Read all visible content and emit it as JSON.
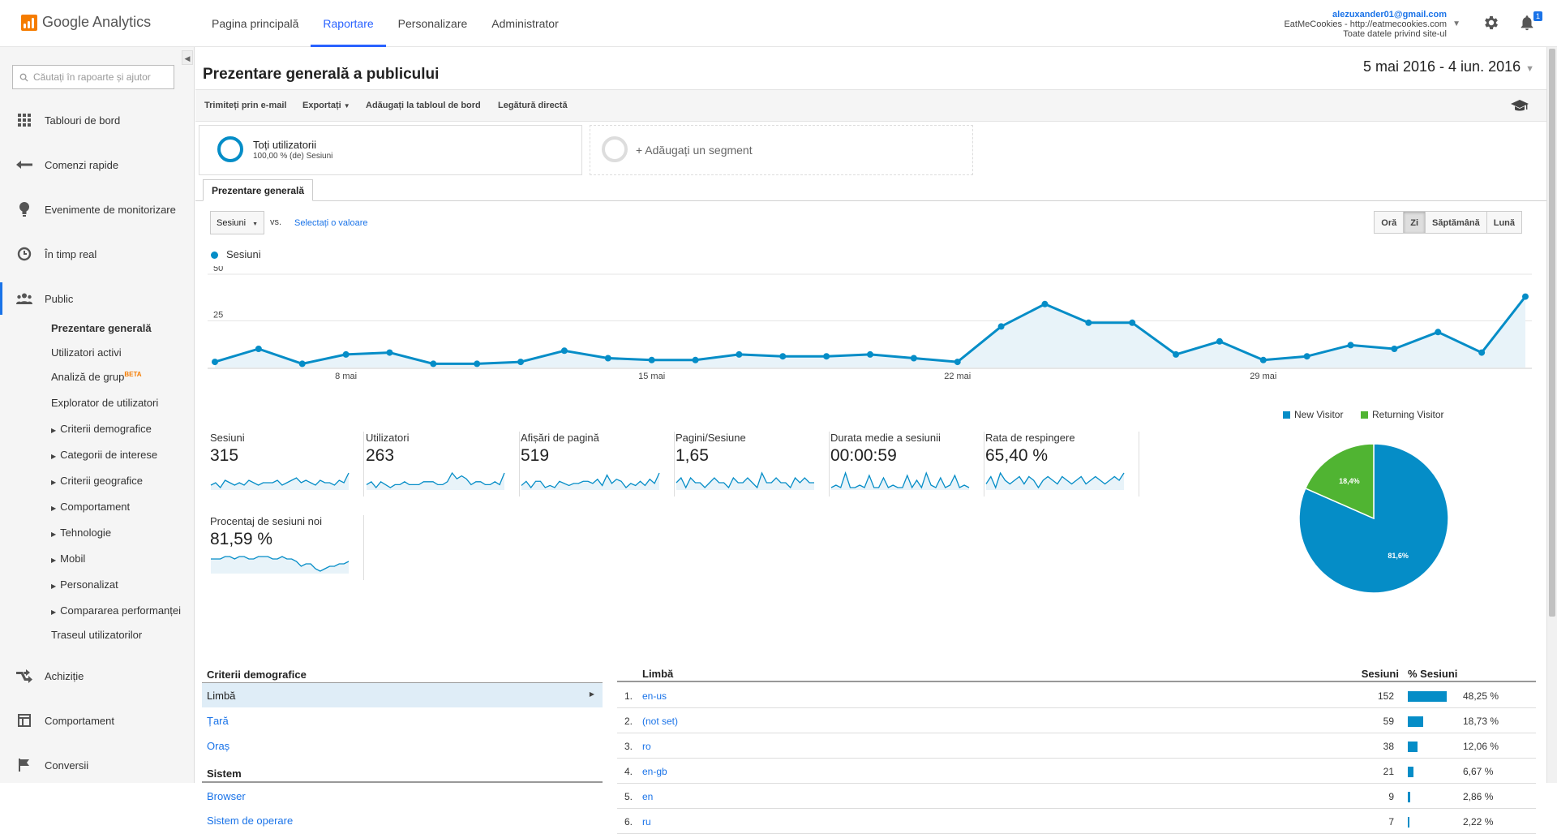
{
  "app": {
    "logo_text": "Google Analytics",
    "nav": [
      {
        "label": "Pagina principală",
        "active": false
      },
      {
        "label": "Raportare",
        "active": true
      },
      {
        "label": "Personalizare",
        "active": false
      },
      {
        "label": "Administrator",
        "active": false
      }
    ],
    "account": {
      "email": "alezuxander01@gmail.com",
      "property": "EatMeCookies - http://eatmecookies.com",
      "view": "Toate datele privind site-ul"
    },
    "notification_count": "1"
  },
  "sidebar": {
    "search_placeholder": "Căutați în rapoarte și ajutor",
    "items": [
      {
        "label": "Tablouri de bord",
        "icon": "dashboard-icon"
      },
      {
        "label": "Comenzi rapide",
        "icon": "shortcut-icon"
      },
      {
        "label": "Evenimente de monitorizare",
        "icon": "lightbulb-icon"
      },
      {
        "label": "În timp real",
        "icon": "clock-icon"
      },
      {
        "label": "Public",
        "icon": "people-icon"
      },
      {
        "label": "Achiziție",
        "icon": "acquisition-icon"
      },
      {
        "label": "Comportament",
        "icon": "behavior-icon"
      },
      {
        "label": "Conversii",
        "icon": "flag-icon"
      }
    ],
    "subitems": [
      "Prezentare generală",
      "Utilizatori activi",
      "Analiză de grup",
      "Explorator de utilizatori",
      "Criterii demografice",
      "Categorii de interese",
      "Criterii geografice",
      "Comportament",
      "Tehnologie",
      "Mobil",
      "Personalizat",
      "Compararea performanței",
      "Traseul utilizatorilor"
    ],
    "beta": "BETA"
  },
  "page": {
    "title": "Prezentare generală a publicului",
    "date_start": "5 mai 2016",
    "date_sep": " - ",
    "date_end": "4 iun. 2016"
  },
  "toolbar": {
    "email": "Trimiteți prin e-mail",
    "export": "Exportați",
    "add_dashboard": "Adăugați la tabloul de bord",
    "shortcut": "Legătură directă"
  },
  "segments": {
    "all_users": "Toți utilizatorii",
    "all_users_sub": "100,00 % (de) Sesiuni",
    "add": "+ Adăugați un segment"
  },
  "tab": "Prezentare generală",
  "controls": {
    "metric": "Sesiuni",
    "vs": "vs.",
    "select_value": "Selectați o valoare",
    "granularity": [
      {
        "label": "Oră",
        "active": false
      },
      {
        "label": "Zi",
        "active": true
      },
      {
        "label": "Săptămână",
        "active": false
      },
      {
        "label": "Lună",
        "active": false
      }
    ]
  },
  "chart_data": {
    "type": "area",
    "series": [
      {
        "name": "Sesiuni",
        "values": [
          3,
          10,
          2,
          7,
          8,
          2,
          2,
          3,
          9,
          5,
          4,
          4,
          7,
          6,
          6,
          7,
          5,
          3,
          22,
          34,
          24,
          24,
          7,
          14,
          4,
          6,
          12,
          10,
          19,
          8,
          38
        ]
      }
    ],
    "x_ticks": [
      "8 mai",
      "15 mai",
      "22 mai",
      "29 mai"
    ],
    "y_ticks": [
      "50",
      "25"
    ],
    "ylim": [
      0,
      50
    ],
    "color": "#058dc7"
  },
  "scorecards": [
    {
      "label": "Sesiuni",
      "value": "315",
      "spark": [
        4,
        5,
        3,
        6,
        5,
        4,
        5,
        4,
        6,
        5,
        4,
        5,
        5,
        5,
        6,
        4,
        5,
        6,
        7,
        5,
        6,
        5,
        4,
        6,
        5,
        5,
        4,
        6,
        5,
        9
      ]
    },
    {
      "label": "Utilizatori",
      "value": "263",
      "spark": [
        4,
        5,
        3,
        5,
        4,
        3,
        4,
        4,
        5,
        4,
        4,
        4,
        5,
        5,
        5,
        4,
        4,
        5,
        8,
        6,
        7,
        6,
        4,
        5,
        5,
        4,
        4,
        5,
        4,
        8
      ]
    },
    {
      "label": "Afișări de pagină",
      "value": "519",
      "spark": [
        4,
        6,
        3,
        6,
        6,
        3,
        4,
        3,
        6,
        5,
        4,
        5,
        5,
        6,
        6,
        5,
        7,
        4,
        9,
        5,
        7,
        6,
        3,
        5,
        4,
        6,
        4,
        7,
        5,
        10
      ]
    },
    {
      "label": "Pagini/Sesiune",
      "value": "1,65",
      "spark": [
        6,
        7,
        5,
        7,
        6,
        6,
        5,
        6,
        7,
        6,
        6,
        5,
        7,
        6,
        6,
        7,
        6,
        5,
        8,
        6,
        6,
        7,
        6,
        6,
        5,
        7,
        6,
        7,
        6,
        6
      ]
    },
    {
      "label": "Durata medie a sesiunii",
      "value": "00:00:59",
      "spark": [
        3,
        4,
        3,
        9,
        3,
        3,
        4,
        3,
        8,
        3,
        3,
        7,
        3,
        4,
        3,
        3,
        8,
        3,
        6,
        3,
        9,
        4,
        3,
        7,
        3,
        4,
        8,
        3,
        4,
        3
      ]
    },
    {
      "label": "Rata de respingere",
      "value": "65,40 %",
      "spark": [
        6,
        8,
        5,
        9,
        7,
        6,
        7,
        8,
        6,
        8,
        7,
        5,
        7,
        8,
        7,
        6,
        8,
        7,
        6,
        7,
        8,
        6,
        7,
        8,
        7,
        6,
        7,
        8,
        7,
        9
      ]
    },
    {
      "label": "Procentaj de sesiuni noi",
      "value": "81,59 %",
      "spark": [
        8,
        8,
        8,
        9,
        9,
        8,
        9,
        9,
        8,
        8,
        9,
        9,
        9,
        8,
        8,
        9,
        8,
        8,
        7,
        5,
        6,
        6,
        4,
        3,
        4,
        5,
        5,
        6,
        6,
        7
      ]
    }
  ],
  "pie": {
    "legend": [
      {
        "label": "New Visitor",
        "color": "#058dc7"
      },
      {
        "label": "Returning Visitor",
        "color": "#50b432"
      }
    ],
    "slices": [
      81.6,
      18.4
    ],
    "labels": [
      "81,6%",
      "18,4%"
    ]
  },
  "bottom": {
    "section1": "Criterii demografice",
    "section1_items": [
      "Limbă",
      "Țară",
      "Oraș"
    ],
    "section2": "Sistem",
    "section2_items": [
      "Browser",
      "Sistem de operare"
    ],
    "table": {
      "col_dim": "Limbă",
      "col_sessions": "Sesiuni",
      "col_pct": "% Sesiuni",
      "rows": [
        {
          "n": "1.",
          "name": "en-us",
          "sessions": "152",
          "pct": "48,25 %",
          "frac": 0.4825
        },
        {
          "n": "2.",
          "name": "(not set)",
          "sessions": "59",
          "pct": "18,73 %",
          "frac": 0.1873
        },
        {
          "n": "3.",
          "name": "ro",
          "sessions": "38",
          "pct": "12,06 %",
          "frac": 0.1206
        },
        {
          "n": "4.",
          "name": "en-gb",
          "sessions": "21",
          "pct": "6,67 %",
          "frac": 0.0667
        },
        {
          "n": "5.",
          "name": "en",
          "sessions": "9",
          "pct": "2,86 %",
          "frac": 0.0286
        },
        {
          "n": "6.",
          "name": "ru",
          "sessions": "7",
          "pct": "2,22 %",
          "frac": 0.0222
        }
      ]
    }
  }
}
